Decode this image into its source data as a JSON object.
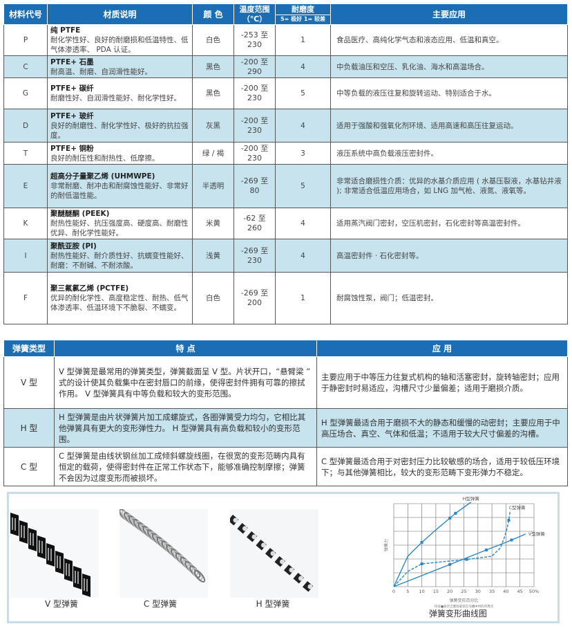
{
  "materials": {
    "headers": {
      "code": "材料代号",
      "desc": "材质说明",
      "color": "颜 色",
      "temp": "温度范围",
      "temp_unit": "（℃）",
      "wear": "耐磨度",
      "wear_scale": "5= 极好 1= 较差",
      "app": "主要应用"
    },
    "rows": [
      {
        "code": "P",
        "name": "纯 PTFE",
        "desc": "耐化学性好、良好的耐磨损和低温特性、低气体渗透率、 PDA 认证。",
        "color": "白色",
        "temp_low": "-253 至",
        "temp_high": "230",
        "wear": "1",
        "app": "食品医疗、高纯化学气态和液态应用、低温和真空。"
      },
      {
        "code": "C",
        "name": "PTFE+ 石墨",
        "desc": "耐高温、耐磨、自润滑性能好。",
        "color": "黑色",
        "temp_low": "-200 至",
        "temp_high": "290",
        "wear": "4",
        "app": "中负载油压和空压、乳化油、海水和高温场合。"
      },
      {
        "code": "G",
        "name": "PTFE+ 碳纤",
        "desc": "耐磨性好、自润滑性能好、耐化学性好。",
        "color": "黑色",
        "temp_low": "-200 至",
        "temp_high": "230",
        "wear": "5",
        "app": "中等负载的液压往复和旋转运动、特别适合于水。"
      },
      {
        "code": "D",
        "name": "PTFE+ 玻纤",
        "desc": "良好的耐磨性、耐化学性好、极好的抗拉强度。",
        "color": "灰黑",
        "temp_low": "-200 至",
        "temp_high": "230",
        "wear": "4",
        "app": "适用于强酸和强氧化剂环境、适用高速和高压往复运动。"
      },
      {
        "code": "T",
        "name": "PTFE+ 铜粉",
        "desc": "良好的耐压性和耐热性、低摩擦。",
        "color": "绿 / 褐",
        "temp_low": "-200 至",
        "temp_high": "230",
        "wear": "3",
        "app": "液压系统中高负载液压密封件。"
      },
      {
        "code": "E",
        "name": "超高分子量聚乙烯 (UHMWPE)",
        "desc": "非常耐磨、耐冲击和耐腐蚀性能好、非常好的耐低温性能。",
        "color": "半透明",
        "temp_low": "-269 至",
        "temp_high": "80",
        "wear": "5",
        "app": "非常适合磨损性介质：优异的水基介质应用 ( 水基压裂液，水基钻井液 ); 非常适合低温应用场合，如 LNG 加气枪、液氮、液氧等。"
      },
      {
        "code": "K",
        "name": "聚醚醚酮 (PEEK)",
        "desc": "耐热性能好、抗压强度高、硬度高、耐磨性优异、耐化学性能好。",
        "color": "米黄",
        "temp_low": "-62 至",
        "temp_high": "260",
        "wear": "4",
        "app": "适用蒸汽阀门密封，空压机密封，石化密封等高温密封件。"
      },
      {
        "code": "I",
        "name": "聚酰亚胺 (PI)",
        "desc": "耐热性能好、耐介质性好、抗蠕变性能好、耐磨：不耐碱、不耐浓酸。",
        "color": "浅黄",
        "temp_low": "-269 至",
        "temp_high": "230",
        "wear": "4",
        "app": "高温密封件 · 石化密封等。"
      },
      {
        "code": "F",
        "name": "聚三氟氯乙烯 (PCTFE)",
        "desc": "优异的耐化学性、高度稳定性、耐热、低气体渗透率、低温环境下不脆裂、不蠕变。",
        "color": "白色",
        "temp_low": "-269 至",
        "temp_high": "200",
        "wear": "1",
        "app": "耐腐蚀性泵，阀门；低温密封。"
      }
    ]
  },
  "springs": {
    "headers": {
      "type": "弹簧类型",
      "feature": "特 点",
      "app": "应 用"
    },
    "rows": [
      {
        "type": "V 型",
        "feature": "V 型弹簧是最常用的弹簧类型，弹簧截面呈 V 型。片状开口，“悬臂梁 ” 式的设计使其负载集中在密封唇口的前缘，使得密封件拥有可靠的擦拭作用。 V 型弹簧具有中等负载和较大的变形范围。",
        "app": "主要应用于中等压力往复式机构的轴和活塞密封，旋转轴密封；应用于静密封时易适应，沟槽尺寸少量偏差；适用于磨损介质。"
      },
      {
        "type": "H 型",
        "feature": "H 型弹簧是由片状弹簧片加工成螺旋式，各圈弹簧受力均匀，它相比其他弹簧具有更大的变形弹性力。 H 型弹簧具有高负载和较小的变形范围。",
        "app": "H 型弹簧最适合用于磨损不大的静态和缓慢的动密封；主要应用于中高压场合、真空、气体和低温；不适用于较大尺寸偏差的沟槽。"
      },
      {
        "type": "C 型",
        "feature": "C 型弹簧是由线状钢丝加工成倾斜螺旋线圈，在很宽的变形范畴内具有恒定的载荷，使得密封件在正常工作状态下，能够准确控制摩擦；弹簧不会因为过度变形而被损坏。",
        "app": "C 型弹簧最适合用于对密封压力比较敏感的场合，适用于较低压环境下；与其他弹簧相比，较大的变形范畴下变形弹力不稳定。"
      }
    ]
  },
  "photos": [
    {
      "label": "V 型弹簧"
    },
    {
      "label": "C 型弹簧"
    },
    {
      "label": "H 型弹簧"
    }
  ],
  "colors": {
    "header": "#1b6db4",
    "alt_row": "#c6e3ee",
    "curve": "#2a86c8"
  },
  "chart_data": {
    "type": "line",
    "title": "弹簧变形曲线图",
    "xlabel": "弹簧变形百分比",
    "ylabel": "弹簧力",
    "note": "符号■表示泛塞封安装在沟槽中时的作用点",
    "xticks": [
      "0",
      "5",
      "10",
      "15",
      "20",
      "25",
      "30",
      "35",
      "40",
      "45",
      "50%"
    ],
    "xlim": [
      0,
      50
    ],
    "ylim": [
      0,
      6
    ],
    "grid": true,
    "series": [
      {
        "name": "H型弹簧",
        "x": [
          0,
          5,
          10,
          15,
          20,
          22,
          27.5
        ],
        "y": [
          0,
          2.2,
          3.2,
          4.1,
          4.95,
          5.3,
          6.1
        ],
        "markers": [
          10,
          20,
          22
        ]
      },
      {
        "name": "C型弹簧",
        "x": [
          0,
          5,
          10,
          20,
          26,
          35,
          38,
          39.5,
          40.5,
          41,
          41.5
        ],
        "y": [
          0,
          1.1,
          1.65,
          1.85,
          1.97,
          2.2,
          2.8,
          3.6,
          4.3,
          4.8,
          5.5
        ],
        "markers": [
          10,
          26,
          41
        ]
      },
      {
        "name": "V型弹簧",
        "x": [
          0,
          10,
          20,
          33,
          40,
          47
        ],
        "y": [
          0,
          0.8,
          1.6,
          2.65,
          3.2,
          3.8
        ],
        "markers": [
          20,
          33,
          42
        ]
      }
    ]
  }
}
